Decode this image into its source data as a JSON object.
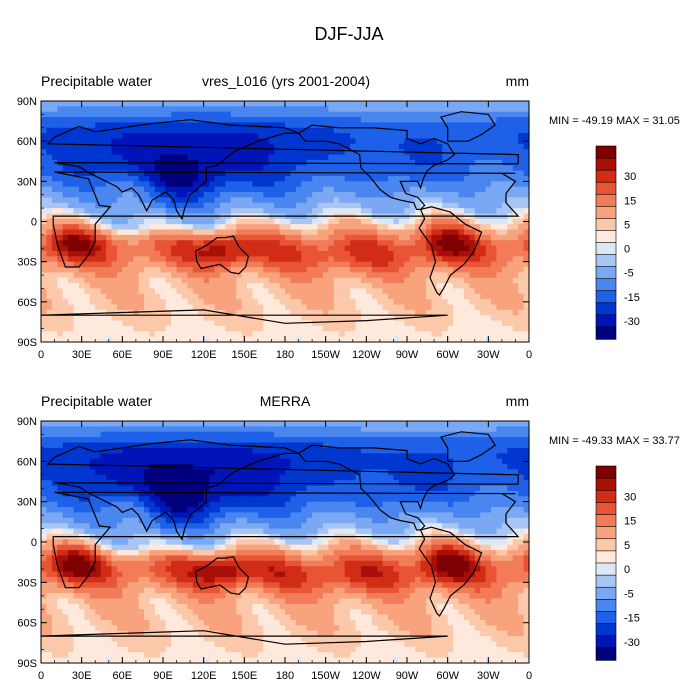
{
  "title": "DJF-JJA",
  "colorbar": {
    "colors": [
      "#00007f",
      "#0014b7",
      "#0037d0",
      "#1e60e8",
      "#4a86f0",
      "#7aa8f2",
      "#a8c6f4",
      "#dce8f6",
      "#ffe9dc",
      "#fcc8aa",
      "#f8a27e",
      "#f27c58",
      "#e85534",
      "#d02c16",
      "#a80f08",
      "#7f0000"
    ],
    "labels": [
      "-30",
      "-15",
      "-5",
      "0",
      "5",
      "15",
      "30"
    ],
    "label_positions": [
      1,
      3,
      5,
      7,
      9,
      11,
      13
    ]
  },
  "chart_data": [
    {
      "type": "heatmap",
      "variable": "Precipitable water",
      "subtitle": "vres_L016 (yrs 2001-2004)",
      "units": "mm",
      "stats": "MIN = -49.19 MAX =  31.05",
      "min": -49.19,
      "max": 31.05,
      "xticks": [
        "0",
        "30E",
        "60E",
        "90E",
        "120E",
        "150E",
        "180",
        "150W",
        "120W",
        "90W",
        "60W",
        "30W",
        "0"
      ],
      "yticks": [
        "90N",
        "60N",
        "30N",
        "0",
        "30S",
        "60S",
        "90S"
      ],
      "xlim": [
        0,
        360
      ],
      "ylim": [
        -90,
        90
      ],
      "contour_levels": [
        -30,
        -25,
        -20,
        -15,
        -10,
        -5,
        -2,
        0,
        2,
        5,
        10,
        15,
        20,
        25,
        30
      ]
    },
    {
      "type": "heatmap",
      "variable": "Precipitable water",
      "subtitle": "MERRA",
      "units": "mm",
      "stats": "MIN = -49.33 MAX =  33.77",
      "min": -49.33,
      "max": 33.77,
      "xticks": [
        "0",
        "30E",
        "60E",
        "90E",
        "120E",
        "150E",
        "180",
        "150W",
        "120W",
        "90W",
        "60W",
        "30W",
        "0"
      ],
      "yticks": [
        "90N",
        "60N",
        "30N",
        "0",
        "30S",
        "60S",
        "90S"
      ],
      "xlim": [
        0,
        360
      ],
      "ylim": [
        -90,
        90
      ],
      "contour_levels": [
        -30,
        -25,
        -20,
        -15,
        -10,
        -5,
        -2,
        0,
        2,
        5,
        10,
        15,
        20,
        25,
        30
      ]
    }
  ]
}
